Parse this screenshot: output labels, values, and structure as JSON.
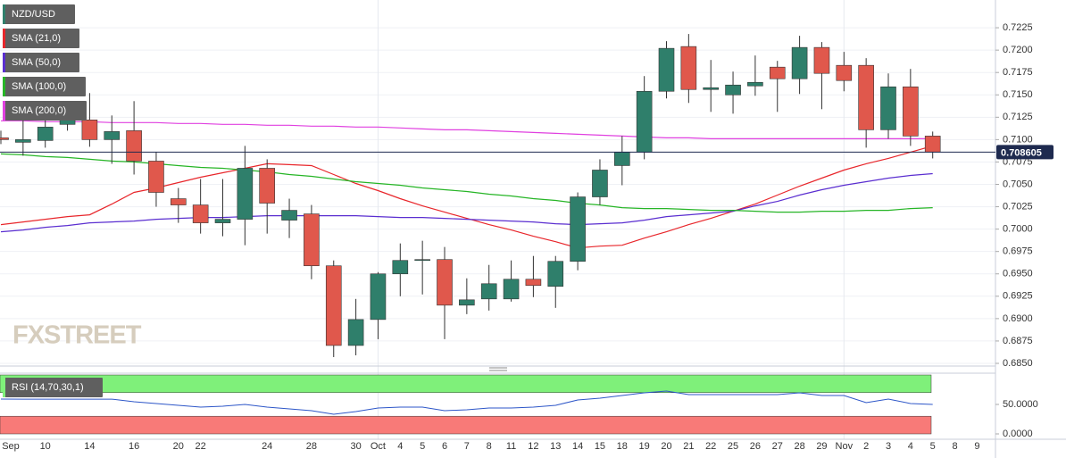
{
  "chart_data": [
    {
      "type": "candlestick",
      "name": "NZD/USD",
      "watermark": "FXSTREET",
      "categories": [
        "Sep",
        null,
        "10",
        null,
        "14",
        null,
        "16",
        null,
        "20",
        "22",
        null,
        null,
        "24",
        null,
        "28",
        null,
        "30",
        "Oct",
        "4",
        "5",
        "6",
        "7",
        "8",
        "11",
        "12",
        "13",
        "14",
        "15",
        "18",
        "19",
        "20",
        "21",
        "22",
        "25",
        "26",
        "27",
        "28",
        "29",
        "Nov",
        "2",
        "3",
        "4",
        "5",
        "8",
        "9"
      ],
      "open": [
        0.7102,
        0.7097,
        0.7099,
        0.7117,
        0.7122,
        0.71,
        0.711,
        0.7076,
        0.7034,
        0.7027,
        0.7007,
        0.7011,
        0.7068,
        0.701,
        0.7017,
        0.6959,
        0.687,
        0.6899,
        0.695,
        0.6965,
        0.6966,
        0.6915,
        0.6922,
        0.6922,
        0.6944,
        0.6936,
        0.6964,
        0.7036,
        0.7071,
        0.7086,
        0.7154,
        0.7204,
        0.7156,
        0.715,
        0.716,
        0.7181,
        0.7168,
        0.7203,
        0.7183,
        0.7183,
        0.7111,
        0.7159,
        0.7104,
        null,
        null
      ],
      "high": [
        0.711,
        0.7125,
        0.7131,
        0.7135,
        0.7152,
        0.7127,
        0.7143,
        0.7086,
        0.7046,
        0.7056,
        0.7056,
        0.7093,
        0.7078,
        0.7034,
        0.7027,
        0.6965,
        0.6922,
        0.6952,
        0.6984,
        0.6987,
        0.698,
        0.6945,
        0.696,
        0.6965,
        0.697,
        0.697,
        0.7041,
        0.7078,
        0.7104,
        0.7171,
        0.721,
        0.7218,
        0.7189,
        0.7176,
        0.7194,
        0.7188,
        0.7216,
        0.7209,
        0.7198,
        0.7191,
        0.7174,
        0.7179,
        0.7109,
        null,
        null
      ],
      "low": [
        0.7095,
        0.7082,
        0.7091,
        0.711,
        0.7092,
        0.7073,
        0.7061,
        0.7025,
        0.7007,
        0.6995,
        0.6992,
        0.6982,
        0.6995,
        0.699,
        0.6944,
        0.6857,
        0.6859,
        0.6877,
        0.6925,
        0.6927,
        0.6877,
        0.6905,
        0.6909,
        0.6919,
        0.6924,
        0.6912,
        0.6954,
        0.7027,
        0.7049,
        0.7078,
        0.7146,
        0.7141,
        0.7131,
        0.7129,
        0.7149,
        0.7131,
        0.7151,
        0.7134,
        0.7154,
        0.7091,
        0.7101,
        0.7093,
        0.7079,
        null,
        null
      ],
      "close": [
        0.71,
        0.71,
        0.7114,
        0.7122,
        0.71,
        0.7109,
        0.7076,
        0.7041,
        0.7027,
        0.7007,
        0.7011,
        0.7068,
        0.7029,
        0.7021,
        0.6959,
        0.687,
        0.6899,
        0.695,
        0.6965,
        0.6966,
        0.6915,
        0.6921,
        0.6939,
        0.6944,
        0.6937,
        0.6964,
        0.7036,
        0.7066,
        0.7086,
        0.7154,
        0.7202,
        0.7156,
        0.7158,
        0.7161,
        0.7164,
        0.7168,
        0.7203,
        0.7174,
        0.7166,
        0.7111,
        0.7159,
        0.7104,
        0.70861,
        null,
        null
      ],
      "up_color": "#2f7f6b",
      "down_color": "#e0584c",
      "last_price": 0.708605,
      "last_price_color": "#1e2a4f",
      "overlays": [
        {
          "name": "SMA (21,0)",
          "color": "#e8262b",
          "values": [
            0.7005,
            0.7008,
            0.7011,
            0.7014,
            0.7016,
            0.7028,
            0.7041,
            0.7046,
            0.7052,
            0.7058,
            0.7063,
            0.7068,
            0.7073,
            0.7072,
            0.7071,
            0.7061,
            0.7051,
            0.7043,
            0.7034,
            0.7026,
            0.7019,
            0.7012,
            0.7005,
            0.6999,
            0.6992,
            0.6986,
            0.6979,
            0.6981,
            0.6982,
            0.699,
            0.6997,
            0.7005,
            0.7012,
            0.702,
            0.7028,
            0.7038,
            0.7048,
            0.7057,
            0.7066,
            0.7073,
            0.7079,
            0.7086,
            0.7093,
            null,
            null
          ]
        },
        {
          "name": "SMA (50,0)",
          "color": "#5a2ed0",
          "values": [
            0.6997,
            0.6999,
            0.7002,
            0.7004,
            0.7007,
            0.7008,
            0.7009,
            0.7011,
            0.7012,
            0.7013,
            0.7013,
            0.7014,
            0.7015,
            0.7015,
            0.7015,
            0.7015,
            0.7015,
            0.7014,
            0.7013,
            0.7013,
            0.7012,
            0.7011,
            0.701,
            0.7009,
            0.7008,
            0.7006,
            0.7005,
            0.7006,
            0.7007,
            0.701,
            0.7014,
            0.7016,
            0.7018,
            0.702,
            0.7026,
            0.7031,
            0.7038,
            0.7044,
            0.7049,
            0.7053,
            0.7057,
            0.706,
            0.7062,
            null,
            null
          ]
        },
        {
          "name": "SMA (100,0)",
          "color": "#26b526",
          "values": [
            0.7084,
            0.7083,
            0.7081,
            0.708,
            0.7078,
            0.7076,
            0.7075,
            0.7073,
            0.7071,
            0.7069,
            0.7068,
            0.7066,
            0.7064,
            0.7061,
            0.7059,
            0.7056,
            0.7053,
            0.7051,
            0.7049,
            0.7046,
            0.7044,
            0.7042,
            0.7039,
            0.7037,
            0.7034,
            0.7032,
            0.7029,
            0.7027,
            0.7024,
            0.7023,
            0.7023,
            0.7022,
            0.7021,
            0.7021,
            0.702,
            0.7019,
            0.7019,
            0.702,
            0.702,
            0.7021,
            0.7021,
            0.7023,
            0.7024,
            null,
            null
          ]
        },
        {
          "name": "SMA (200,0)",
          "color": "#e040e0",
          "values": [
            0.7121,
            0.7121,
            0.712,
            0.712,
            0.712,
            0.7119,
            0.7119,
            0.7119,
            0.7118,
            0.7118,
            0.7117,
            0.7117,
            0.7116,
            0.7116,
            0.7115,
            0.7115,
            0.7114,
            0.7114,
            0.7113,
            0.7112,
            0.7111,
            0.7111,
            0.711,
            0.7109,
            0.7108,
            0.7107,
            0.7106,
            0.7105,
            0.7104,
            0.7103,
            0.7102,
            0.7102,
            0.7101,
            0.7101,
            0.7101,
            0.7101,
            0.7101,
            0.7101,
            0.7101,
            0.7101,
            0.7101,
            0.7101,
            0.7101,
            null,
            null
          ]
        }
      ],
      "ylim": [
        0.6847,
        0.7256
      ],
      "yticks": [
        {
          "value": 0.685,
          "label": "0.6850"
        },
        0.6875,
        {
          "value": 0.69,
          "label": "0.6900"
        },
        0.6925,
        {
          "value": 0.695,
          "label": "0.6950"
        },
        0.6975,
        {
          "value": 0.7,
          "label": "0.7000"
        },
        0.7025,
        {
          "value": 0.705,
          "label": "0.7050"
        },
        0.7075,
        {
          "value": 0.71,
          "label": "0.7100"
        },
        0.7125,
        {
          "value": 0.715,
          "label": "0.7150"
        },
        0.7175,
        {
          "value": 0.72,
          "label": "0.7200"
        },
        0.7225
      ],
      "grid": true
    },
    {
      "type": "line",
      "name": "RSI (14,70,30,1)",
      "color": "#2d56c8",
      "values": [
        59.1,
        59,
        59,
        59,
        59,
        59,
        54.5,
        51.5,
        48.5,
        45.5,
        47,
        50,
        45.5,
        42.4,
        39.4,
        33.3,
        37.9,
        43.9,
        45.5,
        45.5,
        39.4,
        40.9,
        43.9,
        43.9,
        45.5,
        48.5,
        57.6,
        60.6,
        65.2,
        69.7,
        72.7,
        66.7,
        66.7,
        66.7,
        66.7,
        66.7,
        69.7,
        65.2,
        65.2,
        53,
        59.1,
        51.5,
        50,
        null,
        null
      ],
      "bands": [
        {
          "from": 70,
          "to": 100,
          "color": "#7ff07a"
        },
        {
          "from": 0,
          "to": 30,
          "color": "#f87a78"
        }
      ],
      "ylim": [
        0,
        100
      ],
      "yticks": [
        {
          "value": 0,
          "label": "0.0000"
        },
        {
          "value": 50,
          "label": "50.0000"
        }
      ]
    }
  ]
}
